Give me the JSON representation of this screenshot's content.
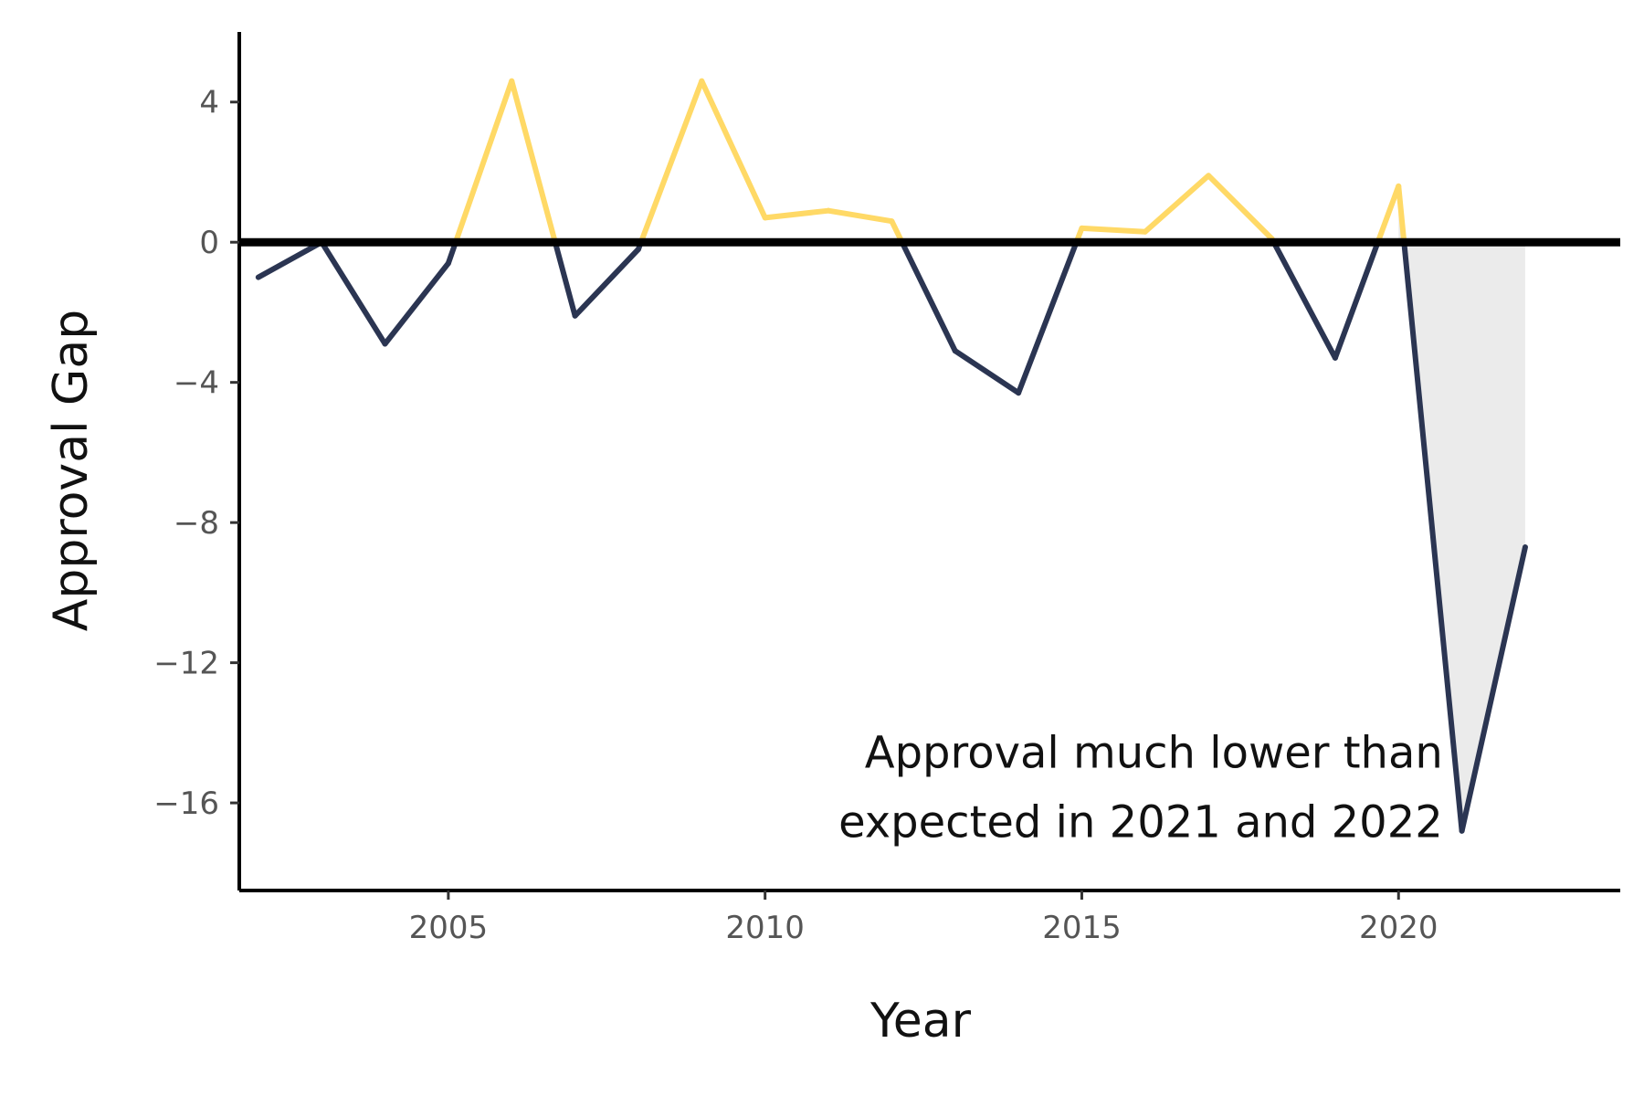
{
  "chart_data": {
    "type": "line",
    "xlabel": "Year",
    "ylabel": "Approval Gap",
    "xlim": [
      2001.7,
      2023.5
    ],
    "ylim": [
      -18.5,
      6
    ],
    "xticks": [
      2005,
      2010,
      2015,
      2020
    ],
    "yticks": [
      4,
      0,
      -4,
      -8,
      -12,
      -16
    ],
    "ytick_labels": [
      "4",
      "0",
      "−4",
      "−8",
      "−12",
      "−16"
    ],
    "grid": false,
    "legend": "none",
    "baseline": 0,
    "colors": {
      "positive": "#FFD966",
      "negative": "#2B3552",
      "baseline": "#000000",
      "shade": "#EBEBEB"
    },
    "x": [
      2002,
      2003,
      2004,
      2005,
      2006,
      2007,
      2008,
      2009,
      2010,
      2011,
      2012,
      2013,
      2014,
      2015,
      2016,
      2017,
      2018,
      2019,
      2020,
      2021,
      2022
    ],
    "y": [
      -1.0,
      0.0,
      -2.9,
      -0.6,
      4.6,
      -2.1,
      -0.2,
      4.6,
      0.7,
      0.9,
      0.6,
      -3.1,
      -4.3,
      0.4,
      0.3,
      1.9,
      0.1,
      -3.3,
      1.6,
      -16.8,
      -8.7
    ],
    "shade_range": [
      2020,
      2022
    ],
    "annotation": {
      "lines": [
        "Approval much lower than",
        "expected in 2021 and 2022"
      ],
      "x": 2020.7,
      "y": -15.0
    }
  }
}
